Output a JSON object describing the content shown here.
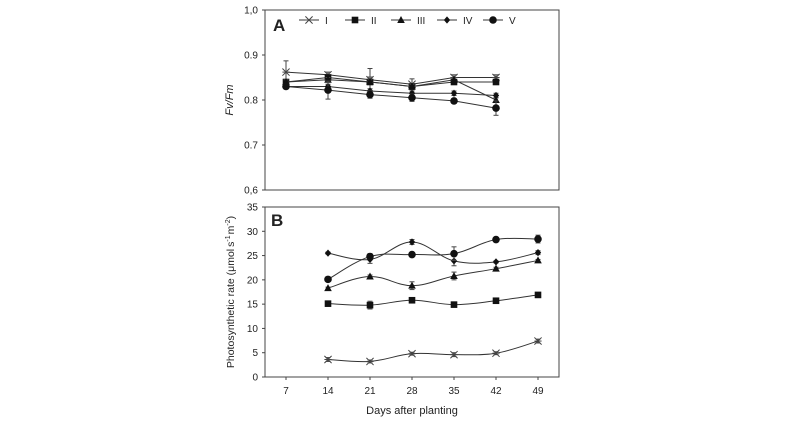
{
  "chart_data": [
    {
      "panel": "A",
      "type": "line",
      "ylabel": "Fv/Fm",
      "xlabel": "",
      "xlim": [
        3.5,
        52.5
      ],
      "ylim": [
        0.6,
        1.0
      ],
      "yticks": [
        "0,6",
        "0.7",
        "0.8",
        "0.9",
        "1,0"
      ],
      "ytick_values": [
        0.6,
        0.7,
        0.8,
        0.9,
        1.0
      ],
      "legend_position": "top",
      "series": [
        {
          "name": "I",
          "marker": "star",
          "x": [
            7,
            14,
            21,
            28,
            35,
            42
          ],
          "values": [
            0.862,
            0.856,
            0.845,
            0.835,
            0.85,
            0.85
          ],
          "errors": [
            0.025,
            0.006,
            0.006,
            0.012,
            0.006,
            0.006
          ]
        },
        {
          "name": "II",
          "marker": "square",
          "x": [
            7,
            14,
            21,
            28,
            35,
            42
          ],
          "values": [
            0.84,
            0.85,
            0.84,
            0.83,
            0.84,
            0.84
          ],
          "errors": [
            0.005,
            0.005,
            0.03,
            0.005,
            0.005,
            0.005
          ]
        },
        {
          "name": "III",
          "marker": "triangle",
          "x": [
            7,
            14,
            21,
            28,
            35,
            42
          ],
          "values": [
            0.84,
            0.845,
            0.84,
            0.83,
            0.845,
            0.8
          ],
          "errors": [
            0.005,
            0.005,
            0.005,
            0.005,
            0.005,
            0.005
          ]
        },
        {
          "name": "IV",
          "marker": "diamond",
          "x": [
            7,
            14,
            21,
            28,
            35,
            42
          ],
          "values": [
            0.83,
            0.83,
            0.82,
            0.815,
            0.815,
            0.81
          ],
          "errors": [
            0.005,
            0.005,
            0.005,
            0.005,
            0.005,
            0.005
          ]
        },
        {
          "name": "V",
          "marker": "circle",
          "x": [
            7,
            14,
            21,
            28,
            35,
            42
          ],
          "values": [
            0.83,
            0.822,
            0.812,
            0.805,
            0.798,
            0.782
          ],
          "errors": [
            0.005,
            0.02,
            0.008,
            0.008,
            0.005,
            0.016
          ]
        }
      ]
    },
    {
      "panel": "B",
      "type": "line",
      "ylabel_prefix": "Photosynthetic rate (μmol",
      "ylabel_sup1": "-1",
      "ylabel_sup2": "-2",
      "ylabel_mid1": "s",
      "ylabel_mid2": "m",
      "ylabel_suffix": ")",
      "xlabel": "Days after planting",
      "xlim": [
        3.5,
        52.5
      ],
      "ylim": [
        0,
        35
      ],
      "yticks": [
        "0",
        "5",
        "10",
        "15",
        "20",
        "25",
        "30",
        "35"
      ],
      "ytick_values": [
        0,
        5,
        10,
        15,
        20,
        25,
        30,
        35
      ],
      "xticks": [
        "7",
        "14",
        "21",
        "28",
        "35",
        "42",
        "49"
      ],
      "xtick_values": [
        7,
        14,
        21,
        28,
        35,
        42,
        49
      ],
      "series": [
        {
          "name": "I",
          "marker": "star",
          "x": [
            14,
            21,
            28,
            35,
            42,
            49
          ],
          "values": [
            3.6,
            3.2,
            4.8,
            4.6,
            4.9,
            7.4
          ],
          "errors": [
            0.4,
            0.3,
            0.3,
            0.4,
            0.3,
            0.4
          ]
        },
        {
          "name": "II",
          "marker": "square",
          "x": [
            14,
            21,
            28,
            35,
            42,
            49
          ],
          "values": [
            15.1,
            14.8,
            15.8,
            14.9,
            15.7,
            16.9
          ],
          "errors": [
            0.2,
            0.8,
            0.2,
            0.2,
            0.2,
            0.2
          ]
        },
        {
          "name": "III",
          "marker": "triangle",
          "x": [
            14,
            21,
            28,
            35,
            42,
            49
          ],
          "values": [
            18.3,
            20.7,
            18.8,
            20.8,
            22.3,
            24.0
          ],
          "errors": [
            0.2,
            0.3,
            0.8,
            0.8,
            0.3,
            0.2
          ]
        },
        {
          "name": "IV",
          "marker": "diamond",
          "x": [
            14,
            21,
            28,
            35,
            42,
            49
          ],
          "values": [
            25.5,
            24.2,
            27.8,
            23.9,
            23.7,
            25.6
          ],
          "errors": [
            0.2,
            0.8,
            0.5,
            1.0,
            0.2,
            0.4
          ]
        },
        {
          "name": "V",
          "marker": "circle",
          "x": [
            14,
            21,
            28,
            35,
            42,
            49
          ],
          "values": [
            20.1,
            24.8,
            25.2,
            25.4,
            28.3,
            28.4
          ],
          "errors": [
            0.3,
            0.6,
            0.4,
            1.4,
            0.2,
            0.8
          ]
        }
      ]
    }
  ]
}
